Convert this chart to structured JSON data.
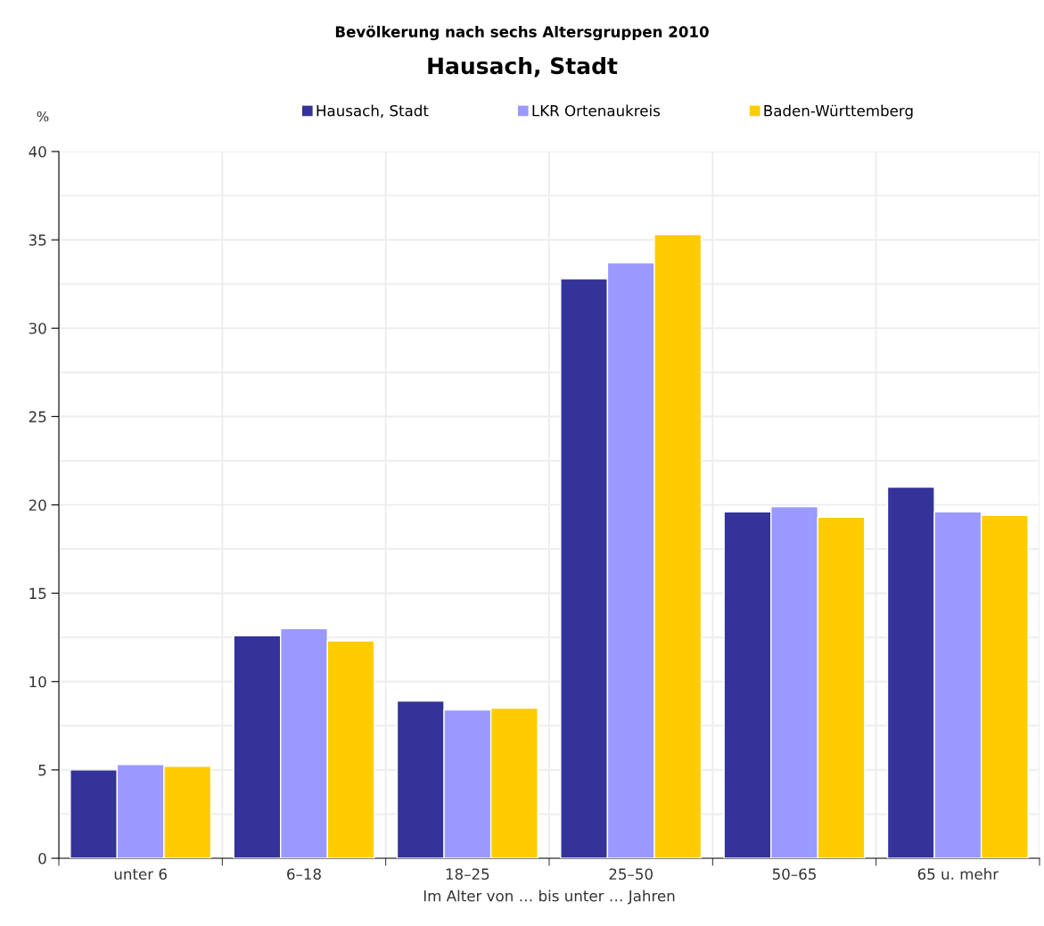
{
  "chart_data": {
    "type": "bar",
    "title": "Bevölkerung nach sechs Altersgruppen 2010",
    "subtitle": "Hausach, Stadt",
    "ylabel": "%",
    "xlabel": "Im Alter von … bis unter … Jahren",
    "categories": [
      "unter 6",
      "6–18",
      "18–25",
      "25–50",
      "50–65",
      "65 u. mehr"
    ],
    "series": [
      {
        "name": "Hausach, Stadt",
        "color": "#333399",
        "values": [
          5.0,
          12.6,
          8.9,
          32.8,
          19.6,
          21.0
        ]
      },
      {
        "name": "LKR Ortenaukreis",
        "color": "#9999ff",
        "values": [
          5.3,
          13.0,
          8.4,
          33.7,
          19.9,
          19.6
        ]
      },
      {
        "name": "Baden-Württemberg",
        "color": "#ffcc00",
        "values": [
          5.2,
          12.3,
          8.5,
          35.3,
          19.3,
          19.4
        ]
      }
    ],
    "ylim": [
      0,
      40
    ],
    "yticks": [
      0,
      {
        "value": 2.5,
        "label": null
      },
      5,
      {
        "value": 7.5,
        "label": null
      },
      10,
      {
        "value": 12.5,
        "label": null
      },
      15,
      {
        "value": 17.5,
        "label": null
      },
      20,
      {
        "value": 22.5,
        "label": null
      },
      25,
      {
        "value": 27.5,
        "label": null
      },
      30,
      {
        "value": 32.5,
        "label": null
      },
      35,
      {
        "value": 37.5,
        "label": null
      },
      40
    ],
    "grid": true,
    "legend": "top"
  }
}
